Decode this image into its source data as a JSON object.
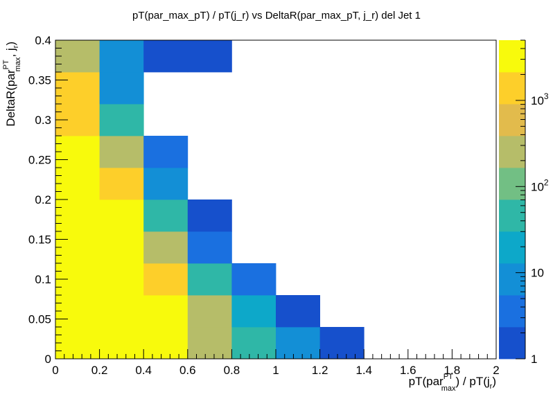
{
  "chart_data": {
    "type": "heatmap",
    "title": "pT(par_max_pT) / pT(j_r) vs DeltaR(par_max_pT, j_r) del Jet 1",
    "xlabel": {
      "pre": "pT(par",
      "sup": "PT",
      "sub": "max",
      "post": ") / pT(j",
      "sub2": "r",
      "end": ")"
    },
    "ylabel": {
      "pre": "DeltaR(par",
      "sup": "PT",
      "sub": "max",
      "post": ", j",
      "sub2": "r",
      "end": ")"
    },
    "xlim": [
      0,
      2
    ],
    "ylim": [
      0,
      0.4
    ],
    "x_bin_width": 0.2,
    "y_bin_width": 0.04,
    "x_ticks": [
      "0",
      "0.2",
      "0.4",
      "0.6",
      "0.8",
      "1",
      "1.2",
      "1.4",
      "1.6",
      "1.8",
      "2"
    ],
    "y_ticks": [
      "0",
      "0.05",
      "0.1",
      "0.15",
      "0.2",
      "0.25",
      "0.3",
      "0.35",
      "0.4"
    ],
    "z_scale": "log",
    "z_range": [
      1,
      5000
    ],
    "z_ticks": [
      {
        "value": 1,
        "base": "1",
        "exp": ""
      },
      {
        "value": 10,
        "base": "10",
        "exp": ""
      },
      {
        "value": 100,
        "base": "10",
        "exp": "2"
      },
      {
        "value": 1000,
        "base": "10",
        "exp": "3"
      }
    ],
    "palette": [
      "#1650cc",
      "#1a70e0",
      "#138fd6",
      "#0da8c9",
      "#2fb7a7",
      "#72bf84",
      "#b6bd69",
      "#e2bb4c",
      "#fdcf2a",
      "#f8fa0c"
    ],
    "cells": [
      {
        "x": 0.1,
        "y": 0.02,
        "z": 5000
      },
      {
        "x": 0.3,
        "y": 0.02,
        "z": 5000
      },
      {
        "x": 0.5,
        "y": 0.02,
        "z": 2500
      },
      {
        "x": 0.7,
        "y": 0.02,
        "z": 300
      },
      {
        "x": 0.9,
        "y": 0.02,
        "z": 60
      },
      {
        "x": 1.1,
        "y": 0.02,
        "z": 10
      },
      {
        "x": 1.3,
        "y": 0.02,
        "z": 2
      },
      {
        "x": 0.1,
        "y": 0.06,
        "z": 5000
      },
      {
        "x": 0.3,
        "y": 0.06,
        "z": 5000
      },
      {
        "x": 0.5,
        "y": 0.06,
        "z": 2500
      },
      {
        "x": 0.7,
        "y": 0.06,
        "z": 300
      },
      {
        "x": 0.9,
        "y": 0.06,
        "z": 25
      },
      {
        "x": 1.1,
        "y": 0.06,
        "z": 1.4
      },
      {
        "x": 0.1,
        "y": 0.1,
        "z": 5000
      },
      {
        "x": 0.3,
        "y": 0.1,
        "z": 5000
      },
      {
        "x": 0.5,
        "y": 0.1,
        "z": 1000
      },
      {
        "x": 0.7,
        "y": 0.1,
        "z": 60
      },
      {
        "x": 0.9,
        "y": 0.1,
        "z": 3
      },
      {
        "x": 0.1,
        "y": 0.14,
        "z": 5000
      },
      {
        "x": 0.3,
        "y": 0.14,
        "z": 2500
      },
      {
        "x": 0.5,
        "y": 0.14,
        "z": 300
      },
      {
        "x": 0.7,
        "y": 0.14,
        "z": 3
      },
      {
        "x": 0.1,
        "y": 0.18,
        "z": 5000
      },
      {
        "x": 0.3,
        "y": 0.18,
        "z": 2500
      },
      {
        "x": 0.5,
        "y": 0.18,
        "z": 60
      },
      {
        "x": 0.7,
        "y": 0.18,
        "z": 1.4
      },
      {
        "x": 0.1,
        "y": 0.22,
        "z": 2500
      },
      {
        "x": 0.3,
        "y": 0.22,
        "z": 1000
      },
      {
        "x": 0.5,
        "y": 0.22,
        "z": 10
      },
      {
        "x": 0.1,
        "y": 0.26,
        "z": 2500
      },
      {
        "x": 0.3,
        "y": 0.26,
        "z": 300
      },
      {
        "x": 0.5,
        "y": 0.26,
        "z": 3
      },
      {
        "x": 0.1,
        "y": 0.3,
        "z": 1000
      },
      {
        "x": 0.3,
        "y": 0.3,
        "z": 60
      },
      {
        "x": 0.1,
        "y": 0.34,
        "z": 1000
      },
      {
        "x": 0.3,
        "y": 0.34,
        "z": 10
      },
      {
        "x": 0.1,
        "y": 0.38,
        "z": 300
      },
      {
        "x": 0.3,
        "y": 0.38,
        "z": 10
      },
      {
        "x": 0.5,
        "y": 0.38,
        "z": 1.4
      },
      {
        "x": 0.7,
        "y": 0.38,
        "z": 1.4
      }
    ]
  }
}
